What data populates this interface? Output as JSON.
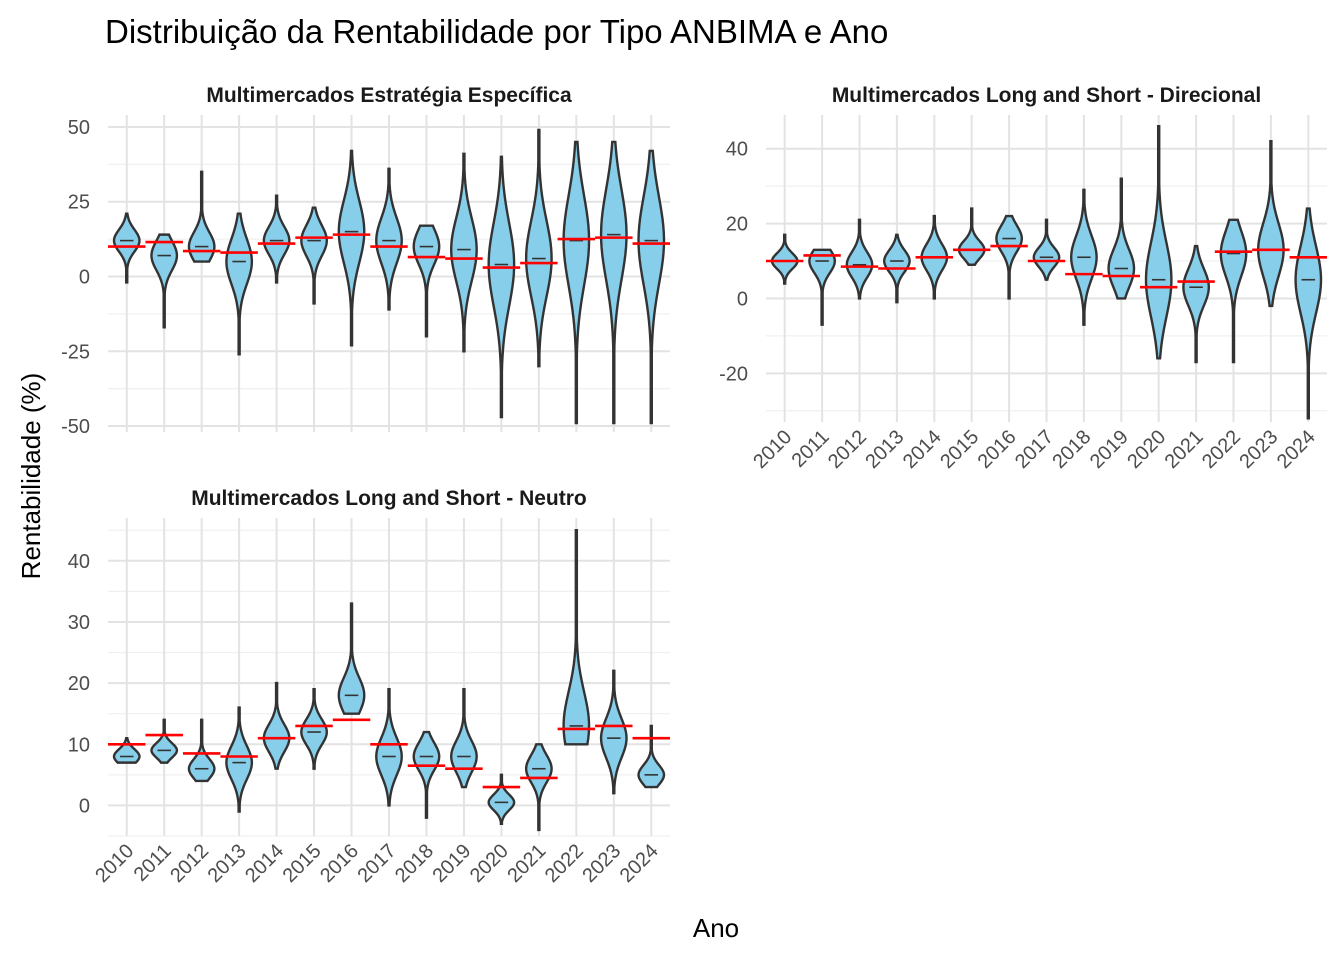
{
  "colors": {
    "violin_fill": "#87CEEB",
    "violin_stroke": "#333333",
    "mean_line": "#FF0000"
  },
  "chart_data": {
    "type": "violin",
    "title": "Distribuição da Rentabilidade por Tipo ANBIMA e Ano",
    "xlabel": "Ano",
    "ylabel": "Rentabilidade (%)",
    "categories": [
      "2010",
      "2011",
      "2012",
      "2013",
      "2014",
      "2015",
      "2016",
      "2017",
      "2018",
      "2019",
      "2020",
      "2021",
      "2022",
      "2023",
      "2024"
    ],
    "panels": [
      {
        "title": "Multimercados Estratégia Específica",
        "ylim": [
          -52,
          54
        ],
        "yticks": [
          -50,
          -25,
          0,
          25,
          50
        ],
        "series": [
          {
            "year": "2010",
            "min": -2,
            "max": 21,
            "median": 12,
            "mean": 10
          },
          {
            "year": "2011",
            "min": -17,
            "max": 14,
            "median": 7,
            "mean": 11.5
          },
          {
            "year": "2012",
            "min": 5,
            "max": 35,
            "median": 10,
            "mean": 8.5
          },
          {
            "year": "2013",
            "min": -26,
            "max": 21,
            "median": 5,
            "mean": 8
          },
          {
            "year": "2014",
            "min": -2,
            "max": 27,
            "median": 12,
            "mean": 11
          },
          {
            "year": "2015",
            "min": -9,
            "max": 23,
            "median": 12,
            "mean": 13
          },
          {
            "year": "2016",
            "min": -23,
            "max": 42,
            "median": 15,
            "mean": 14
          },
          {
            "year": "2017",
            "min": -11,
            "max": 36,
            "median": 12,
            "mean": 10
          },
          {
            "year": "2018",
            "min": -20,
            "max": 17,
            "median": 10,
            "mean": 6.5
          },
          {
            "year": "2019",
            "min": -25,
            "max": 41,
            "median": 9,
            "mean": 6
          },
          {
            "year": "2020",
            "min": -47,
            "max": 40,
            "median": 4,
            "mean": 3
          },
          {
            "year": "2021",
            "min": -30,
            "max": 49,
            "median": 6,
            "mean": 4.5
          },
          {
            "year": "2022",
            "min": -49,
            "max": 45,
            "median": 12,
            "mean": 12.5
          },
          {
            "year": "2023",
            "min": -49,
            "max": 45,
            "median": 14,
            "mean": 13
          },
          {
            "year": "2024",
            "min": -49,
            "max": 42,
            "median": 12,
            "mean": 11
          }
        ]
      },
      {
        "title": "Multimercados Long and Short - Direcional",
        "ylim": [
          -33,
          49
        ],
        "yticks": [
          -20,
          0,
          20,
          40
        ],
        "series": [
          {
            "year": "2010",
            "min": 4,
            "max": 17,
            "median": 10,
            "mean": 10
          },
          {
            "year": "2011",
            "min": -7,
            "max": 13,
            "median": 10,
            "mean": 11.5
          },
          {
            "year": "2012",
            "min": 0,
            "max": 21,
            "median": 9,
            "mean": 8.5
          },
          {
            "year": "2013",
            "min": -1,
            "max": 17,
            "median": 10,
            "mean": 8
          },
          {
            "year": "2014",
            "min": 0,
            "max": 22,
            "median": 11,
            "mean": 11
          },
          {
            "year": "2015",
            "min": 9,
            "max": 24,
            "median": 13,
            "mean": 13
          },
          {
            "year": "2016",
            "min": 0,
            "max": 22,
            "median": 16,
            "mean": 14
          },
          {
            "year": "2017",
            "min": 5,
            "max": 21,
            "median": 11,
            "mean": 10
          },
          {
            "year": "2018",
            "min": -7,
            "max": 29,
            "median": 11,
            "mean": 6.5
          },
          {
            "year": "2019",
            "min": 0,
            "max": 32,
            "median": 8,
            "mean": 6
          },
          {
            "year": "2020",
            "min": -16,
            "max": 46,
            "median": 5,
            "mean": 3
          },
          {
            "year": "2021",
            "min": -17,
            "max": 14,
            "median": 3,
            "mean": 4.5
          },
          {
            "year": "2022",
            "min": -17,
            "max": 21,
            "median": 12,
            "mean": 12.5
          },
          {
            "year": "2023",
            "min": -2,
            "max": 42,
            "median": 13,
            "mean": 13
          },
          {
            "year": "2024",
            "min": -32,
            "max": 24,
            "median": 5,
            "mean": 11
          }
        ]
      },
      {
        "title": "Multimercados Long and Short - Neutro",
        "ylim": [
          -5,
          47
        ],
        "yticks": [
          0,
          10,
          20,
          30,
          40
        ],
        "series": [
          {
            "year": "2010",
            "min": 7,
            "max": 11,
            "median": 8,
            "mean": 10
          },
          {
            "year": "2011",
            "min": 7,
            "max": 14,
            "median": 9,
            "mean": 11.5
          },
          {
            "year": "2012",
            "min": 4,
            "max": 14,
            "median": 6,
            "mean": 8.5
          },
          {
            "year": "2013",
            "min": -1,
            "max": 16,
            "median": 7,
            "mean": 8
          },
          {
            "year": "2014",
            "min": 6,
            "max": 20,
            "median": 11,
            "mean": 11
          },
          {
            "year": "2015",
            "min": 6,
            "max": 19,
            "median": 12,
            "mean": 13
          },
          {
            "year": "2016",
            "min": 15,
            "max": 33,
            "median": 18,
            "mean": 14
          },
          {
            "year": "2017",
            "min": 0,
            "max": 19,
            "median": 8,
            "mean": 10
          },
          {
            "year": "2018",
            "min": -2,
            "max": 12,
            "median": 8,
            "mean": 6.5
          },
          {
            "year": "2019",
            "min": 3,
            "max": 19,
            "median": 8,
            "mean": 6
          },
          {
            "year": "2020",
            "min": -3,
            "max": 5,
            "median": 0.5,
            "mean": 3
          },
          {
            "year": "2021",
            "min": -4,
            "max": 10,
            "median": 6,
            "mean": 4.5
          },
          {
            "year": "2022",
            "min": 10,
            "max": 45,
            "median": 13,
            "mean": 12.5
          },
          {
            "year": "2023",
            "min": 2,
            "max": 22,
            "median": 11,
            "mean": 13
          },
          {
            "year": "2024",
            "min": 3,
            "max": 13,
            "median": 5,
            "mean": 11
          }
        ]
      }
    ]
  }
}
